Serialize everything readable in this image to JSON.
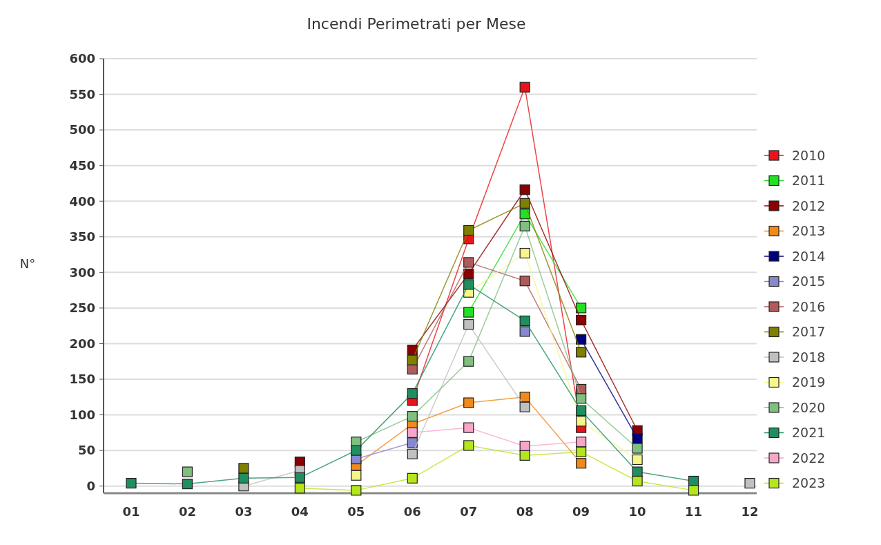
{
  "chart_data": {
    "type": "line",
    "title": "Incendi Perimetrati per Mese",
    "ylabel": "N°",
    "categories": [
      "01",
      "02",
      "03",
      "04",
      "05",
      "06",
      "07",
      "08",
      "09",
      "10",
      "11",
      "12"
    ],
    "ylim": [
      -10,
      600
    ],
    "yticks": [
      0,
      50,
      100,
      150,
      200,
      250,
      300,
      350,
      400,
      450,
      500,
      550,
      600
    ],
    "grid": "y",
    "legend": "right",
    "marker": "square",
    "line_style": "solid",
    "series": [
      {
        "name": "2010",
        "color": "#e8141a",
        "values": [
          null,
          null,
          null,
          null,
          null,
          120,
          347,
          560,
          82,
          null,
          null,
          null
        ]
      },
      {
        "name": "2011",
        "color": "#22e022",
        "values": [
          null,
          null,
          null,
          null,
          null,
          null,
          244,
          382,
          250,
          null,
          null,
          null
        ]
      },
      {
        "name": "2012",
        "color": "#8b0000",
        "values": [
          null,
          null,
          null,
          34,
          null,
          191,
          298,
          416,
          233,
          78,
          null,
          null
        ]
      },
      {
        "name": "2013",
        "color": "#f08a1c",
        "values": [
          null,
          null,
          null,
          null,
          29,
          87,
          117,
          125,
          32,
          null,
          null,
          null
        ]
      },
      {
        "name": "2014",
        "color": "#00007f",
        "values": [
          null,
          null,
          null,
          null,
          null,
          null,
          null,
          null,
          206,
          67,
          null,
          null
        ]
      },
      {
        "name": "2015",
        "color": "#8888cc",
        "values": [
          null,
          null,
          null,
          null,
          38,
          61,
          null,
          217,
          null,
          null,
          null,
          null
        ]
      },
      {
        "name": "2016",
        "color": "#b05a5a",
        "values": [
          null,
          null,
          null,
          null,
          null,
          164,
          314,
          288,
          136,
          null,
          null,
          null
        ]
      },
      {
        "name": "2017",
        "color": "#7f7f00",
        "values": [
          null,
          null,
          25,
          null,
          null,
          177,
          359,
          397,
          188,
          null,
          null,
          null
        ]
      },
      {
        "name": "2018",
        "color": "#c0c0c0",
        "values": [
          null,
          null,
          0,
          22,
          null,
          45,
          227,
          111,
          null,
          null,
          null,
          4
        ]
      },
      {
        "name": "2019",
        "color": "#f5f58a",
        "values": [
          null,
          null,
          null,
          null,
          15,
          null,
          272,
          327,
          91,
          37,
          null,
          null
        ]
      },
      {
        "name": "2020",
        "color": "#7fbf7f",
        "values": [
          null,
          20,
          null,
          null,
          62,
          98,
          175,
          365,
          123,
          53,
          null,
          null
        ]
      },
      {
        "name": "2021",
        "color": "#1f8f5f",
        "values": [
          4,
          3,
          11,
          12,
          50,
          130,
          283,
          232,
          106,
          20,
          7,
          null
        ]
      },
      {
        "name": "2022",
        "color": "#f7a6c8",
        "values": [
          null,
          null,
          null,
          null,
          null,
          75,
          82,
          56,
          62,
          null,
          null,
          null
        ]
      },
      {
        "name": "2023",
        "color": "#b5e61d",
        "values": [
          null,
          null,
          null,
          -3,
          -6,
          11,
          57,
          43,
          48,
          7,
          -6,
          null
        ]
      }
    ]
  }
}
